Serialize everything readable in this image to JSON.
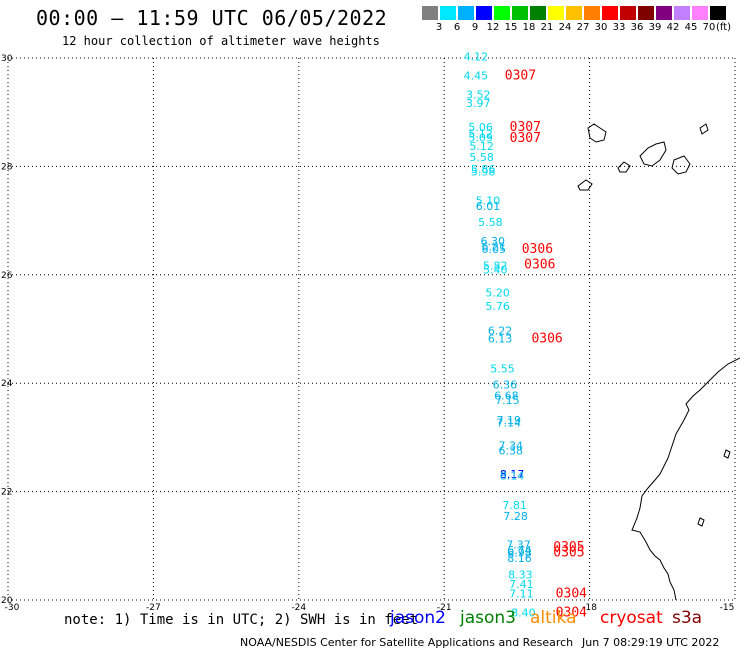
{
  "header": {
    "title": "00:00 – 11:59 UTC 06/05/2022",
    "subtitle": "12 hour collection of altimeter wave heights"
  },
  "colorbar": {
    "unit": "(ft)",
    "bins": [
      {
        "label": "3",
        "color": "#808080"
      },
      {
        "label": "6",
        "color": "#00e8ff"
      },
      {
        "label": "9",
        "color": "#00b0ff"
      },
      {
        "label": "12",
        "color": "#0000ff"
      },
      {
        "label": "15",
        "color": "#00ff00"
      },
      {
        "label": "18",
        "color": "#00c000"
      },
      {
        "label": "21",
        "color": "#008000"
      },
      {
        "label": "24",
        "color": "#ffff00"
      },
      {
        "label": "27",
        "color": "#ffc000"
      },
      {
        "label": "30",
        "color": "#ff8000"
      },
      {
        "label": "33",
        "color": "#ff0000"
      },
      {
        "label": "36",
        "color": "#c00000"
      },
      {
        "label": "39",
        "color": "#800000"
      },
      {
        "label": "42",
        "color": "#800080"
      },
      {
        "label": "45",
        "color": "#c080ff"
      },
      {
        "label": "70",
        "color": "#ff80ff"
      },
      {
        "label": "",
        "color": "#000000"
      }
    ]
  },
  "map": {
    "lat_labels": [
      "30",
      "28",
      "26",
      "24",
      "22",
      "20"
    ],
    "lon_labels": [
      "-30",
      "-27",
      "-24",
      "-21",
      "-18",
      "-15"
    ],
    "lat_range": [
      20,
      30
    ],
    "lon_range": [
      -30,
      -15
    ],
    "observations": [
      {
        "text": "4.12",
        "lon": -20.6,
        "lat": 29.95,
        "color": "#00d8f0"
      },
      {
        "text": "4.45",
        "lon": -20.6,
        "lat": 29.6,
        "color": "#00d8f0"
      },
      {
        "text": "3.52",
        "lon": -20.55,
        "lat": 29.25,
        "color": "#00d8f0"
      },
      {
        "text": "3.97",
        "lon": -20.55,
        "lat": 29.1,
        "color": "#00d8f0"
      },
      {
        "text": "5.06",
        "lon": -20.5,
        "lat": 28.65,
        "color": "#00d8f0"
      },
      {
        "text": "5.12",
        "lon": -20.5,
        "lat": 28.53,
        "color": "#00d8f0"
      },
      {
        "text": "5.09",
        "lon": -20.5,
        "lat": 28.46,
        "color": "#00d8f0"
      },
      {
        "text": "5.12",
        "lon": -20.48,
        "lat": 28.3,
        "color": "#00d8f0"
      },
      {
        "text": "5.58",
        "lon": -20.48,
        "lat": 28.1,
        "color": "#00d8f0"
      },
      {
        "text": "5.86",
        "lon": -20.45,
        "lat": 27.88,
        "color": "#00d8f0"
      },
      {
        "text": "5.98",
        "lon": -20.45,
        "lat": 27.83,
        "color": "#00d8f0"
      },
      {
        "text": "5.10",
        "lon": -20.35,
        "lat": 27.3,
        "color": "#00d8f0"
      },
      {
        "text": "6.01",
        "lon": -20.35,
        "lat": 27.2,
        "color": "#00b0e8"
      },
      {
        "text": "5.58",
        "lon": -20.3,
        "lat": 26.9,
        "color": "#00d8f0"
      },
      {
        "text": "6.30",
        "lon": -20.25,
        "lat": 26.55,
        "color": "#00b0e8"
      },
      {
        "text": "6.21",
        "lon": -20.23,
        "lat": 26.45,
        "color": "#00b0e8"
      },
      {
        "text": "6.05",
        "lon": -20.23,
        "lat": 26.4,
        "color": "#00b0e8"
      },
      {
        "text": "5.82",
        "lon": -20.2,
        "lat": 26.1,
        "color": "#00d8f0"
      },
      {
        "text": "5.40",
        "lon": -20.2,
        "lat": 26.02,
        "color": "#00d8f0"
      },
      {
        "text": "5.20",
        "lon": -20.15,
        "lat": 25.6,
        "color": "#00d8f0"
      },
      {
        "text": "5.76",
        "lon": -20.15,
        "lat": 25.35,
        "color": "#00d8f0"
      },
      {
        "text": "6.22",
        "lon": -20.1,
        "lat": 24.9,
        "color": "#00b0e8"
      },
      {
        "text": "6.13",
        "lon": -20.1,
        "lat": 24.75,
        "color": "#00b0e8"
      },
      {
        "text": "5.55",
        "lon": -20.05,
        "lat": 24.2,
        "color": "#00d8f0"
      },
      {
        "text": "6.36",
        "lon": -20.0,
        "lat": 23.9,
        "color": "#00b0e8"
      },
      {
        "text": "6.68",
        "lon": -19.97,
        "lat": 23.7,
        "color": "#00b0e8"
      },
      {
        "text": "7.15",
        "lon": -19.95,
        "lat": 23.62,
        "color": "#00b0e8"
      },
      {
        "text": "7.19",
        "lon": -19.92,
        "lat": 23.25,
        "color": "#00b0e8"
      },
      {
        "text": "7.14",
        "lon": -19.92,
        "lat": 23.2,
        "color": "#00b0e8"
      },
      {
        "text": "7.34",
        "lon": -19.88,
        "lat": 22.78,
        "color": "#00b0e8"
      },
      {
        "text": "6.38",
        "lon": -19.88,
        "lat": 22.68,
        "color": "#00b0e8"
      },
      {
        "text": "8.17",
        "lon": -19.85,
        "lat": 22.25,
        "color": "#0000ff"
      },
      {
        "text": "8.14",
        "lon": -19.85,
        "lat": 22.22,
        "color": "#00b0e8"
      },
      {
        "text": "7.81",
        "lon": -19.8,
        "lat": 21.68,
        "color": "#00d8f0"
      },
      {
        "text": "7.28",
        "lon": -19.78,
        "lat": 21.48,
        "color": "#00b0e8"
      },
      {
        "text": "7.37",
        "lon": -19.72,
        "lat": 20.95,
        "color": "#00b0e8"
      },
      {
        "text": "6.74",
        "lon": -19.7,
        "lat": 20.85,
        "color": "#00b0e8"
      },
      {
        "text": "6.98",
        "lon": -19.7,
        "lat": 20.8,
        "color": "#00b0e8"
      },
      {
        "text": "8.16",
        "lon": -19.7,
        "lat": 20.7,
        "color": "#00b0e8"
      },
      {
        "text": "8.33",
        "lon": -19.68,
        "lat": 20.4,
        "color": "#00d8f0"
      },
      {
        "text": "7.41",
        "lon": -19.66,
        "lat": 20.22,
        "color": "#00d8f0"
      },
      {
        "text": "7.11",
        "lon": -19.66,
        "lat": 20.05,
        "color": "#00d8f0"
      },
      {
        "text": "8.40",
        "lon": -19.62,
        "lat": 19.7,
        "color": "#00d8f0"
      }
    ],
    "passes": [
      {
        "text": "0307",
        "lon": -19.75,
        "lat": 29.6
      },
      {
        "text": "0307",
        "lon": -19.65,
        "lat": 28.65
      },
      {
        "text": "0307",
        "lon": -19.65,
        "lat": 28.45
      },
      {
        "text": "0306",
        "lon": -19.4,
        "lat": 26.4
      },
      {
        "text": "0306",
        "lon": -19.35,
        "lat": 26.12
      },
      {
        "text": "0306",
        "lon": -19.2,
        "lat": 24.75
      },
      {
        "text": "0305",
        "lon": -18.75,
        "lat": 20.9
      },
      {
        "text": "0305",
        "lon": -18.75,
        "lat": 20.8
      },
      {
        "text": "0304",
        "lon": -18.7,
        "lat": 20.05
      },
      {
        "text": "0304",
        "lon": -18.7,
        "lat": 19.7
      }
    ]
  },
  "footer": {
    "note": "note: 1) Time is in UTC; 2) SWH is in feet",
    "satellites": [
      {
        "name": "jason2",
        "color": "#0000ff"
      },
      {
        "name": "jason3",
        "color": "#008000"
      },
      {
        "name": "altika",
        "color": "#ff8c00"
      },
      {
        "name": "cryosat",
        "color": "#ff0000"
      },
      {
        "name": "s3a",
        "color": "#800000"
      }
    ],
    "credit": "NOAA/NESDIS Center for Satellite Applications and Research",
    "timestamp": "Jun  7 08:29:19 UTC 2022"
  }
}
